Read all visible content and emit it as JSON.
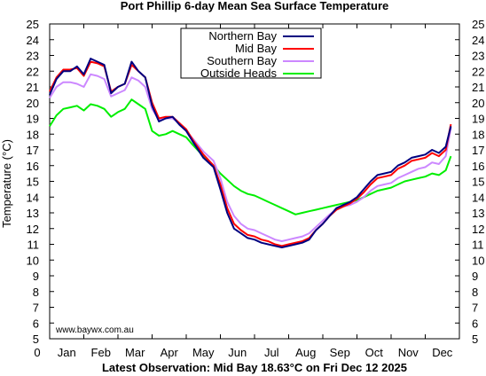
{
  "chart_data": {
    "type": "line",
    "title": "Port Phillip 6-day Mean Sea Surface Temperature",
    "ylabel": "Temperature (°C)",
    "xlabel": "",
    "footer": "Latest Observation: Mid Bay 18.63°C on Fri Dec 12 2025",
    "watermark": "www.baywx.com.au",
    "x_axis_zero_label": "0",
    "xlim": [
      0,
      12
    ],
    "ylim": [
      5,
      25
    ],
    "y_ticks": [
      "5",
      "6",
      "7",
      "8",
      "9",
      "10",
      "11",
      "12",
      "13",
      "14",
      "15",
      "16",
      "17",
      "18",
      "19",
      "20",
      "21",
      "22",
      "23",
      "24",
      "25"
    ],
    "x_ticks": [
      {
        "x": 0.5,
        "label": "Jan"
      },
      {
        "x": 1.5,
        "label": "Feb"
      },
      {
        "x": 2.5,
        "label": "Mar"
      },
      {
        "x": 3.5,
        "label": "Apr"
      },
      {
        "x": 4.5,
        "label": "May"
      },
      {
        "x": 5.5,
        "label": "Jun"
      },
      {
        "x": 6.5,
        "label": "Jul"
      },
      {
        "x": 7.5,
        "label": "Aug"
      },
      {
        "x": 8.5,
        "label": "Sep"
      },
      {
        "x": 9.5,
        "label": "Oct"
      },
      {
        "x": 10.5,
        "label": "Nov"
      },
      {
        "x": 11.5,
        "label": "Dec"
      }
    ],
    "grid": false,
    "legend_position": "top-center",
    "series": [
      {
        "name": "Northern Bay",
        "color": "#000080",
        "x": [
          0.0,
          0.2,
          0.4,
          0.6,
          0.8,
          1.0,
          1.2,
          1.4,
          1.6,
          1.8,
          2.0,
          2.2,
          2.4,
          2.6,
          2.8,
          3.0,
          3.2,
          3.4,
          3.6,
          3.8,
          4.0,
          4.2,
          4.5,
          4.8,
          5.0,
          5.2,
          5.4,
          5.6,
          5.8,
          6.0,
          6.2,
          6.4,
          6.6,
          6.8,
          7.0,
          7.2,
          7.4,
          7.6,
          7.8,
          8.0,
          8.2,
          8.4,
          8.6,
          8.8,
          9.0,
          9.2,
          9.4,
          9.6,
          9.8,
          10.0,
          10.2,
          10.4,
          10.6,
          10.8,
          11.0,
          11.2,
          11.4,
          11.6,
          11.75
        ],
        "y": [
          20.5,
          21.5,
          22.0,
          22.0,
          22.3,
          21.8,
          22.8,
          22.6,
          22.4,
          20.6,
          21.0,
          21.2,
          22.6,
          22.0,
          21.6,
          19.8,
          18.8,
          19.0,
          19.1,
          18.6,
          18.2,
          17.5,
          16.5,
          15.9,
          14.5,
          13.0,
          12.0,
          11.7,
          11.4,
          11.3,
          11.1,
          11.0,
          10.9,
          10.8,
          10.9,
          11.0,
          11.1,
          11.3,
          11.9,
          12.3,
          12.8,
          13.3,
          13.5,
          13.7,
          14.0,
          14.5,
          15.0,
          15.4,
          15.5,
          15.6,
          16.0,
          16.2,
          16.5,
          16.6,
          16.7,
          17.0,
          16.8,
          17.2,
          18.5
        ]
      },
      {
        "name": "Mid Bay",
        "color": "#ff0000",
        "x": [
          0.0,
          0.2,
          0.4,
          0.6,
          0.8,
          1.0,
          1.2,
          1.4,
          1.6,
          1.8,
          2.0,
          2.2,
          2.4,
          2.6,
          2.8,
          3.0,
          3.2,
          3.4,
          3.6,
          3.8,
          4.0,
          4.2,
          4.5,
          4.8,
          5.0,
          5.2,
          5.4,
          5.6,
          5.8,
          6.0,
          6.2,
          6.4,
          6.6,
          6.8,
          7.0,
          7.2,
          7.4,
          7.6,
          7.8,
          8.0,
          8.2,
          8.4,
          8.6,
          8.8,
          9.0,
          9.2,
          9.4,
          9.6,
          9.8,
          10.0,
          10.2,
          10.4,
          10.6,
          10.8,
          11.0,
          11.2,
          11.4,
          11.6,
          11.75
        ],
        "y": [
          20.7,
          21.6,
          22.1,
          22.1,
          22.2,
          21.7,
          22.6,
          22.5,
          22.3,
          20.7,
          21.0,
          21.2,
          22.4,
          22.0,
          21.6,
          20.0,
          19.0,
          19.1,
          19.1,
          18.7,
          18.3,
          17.6,
          16.7,
          16.0,
          14.8,
          13.3,
          12.3,
          11.9,
          11.6,
          11.5,
          11.3,
          11.2,
          11.0,
          10.9,
          11.0,
          11.1,
          11.2,
          11.4,
          11.9,
          12.3,
          12.8,
          13.2,
          13.4,
          13.6,
          13.9,
          14.3,
          14.8,
          15.2,
          15.3,
          15.4,
          15.8,
          16.0,
          16.3,
          16.4,
          16.5,
          16.8,
          16.6,
          17.0,
          18.63
        ]
      },
      {
        "name": "Southern Bay",
        "color": "#cc88ff",
        "x": [
          0.0,
          0.2,
          0.4,
          0.6,
          0.8,
          1.0,
          1.2,
          1.4,
          1.6,
          1.8,
          2.0,
          2.2,
          2.4,
          2.6,
          2.8,
          3.0,
          3.2,
          3.4,
          3.6,
          3.8,
          4.0,
          4.2,
          4.5,
          4.8,
          5.0,
          5.2,
          5.4,
          5.6,
          5.8,
          6.0,
          6.2,
          6.4,
          6.6,
          6.8,
          7.0,
          7.2,
          7.4,
          7.6,
          7.8,
          8.0,
          8.2,
          8.4,
          8.6,
          8.8,
          9.0,
          9.2,
          9.4,
          9.6,
          9.8,
          10.0,
          10.2,
          10.4,
          10.6,
          10.8,
          11.0,
          11.2,
          11.4,
          11.6,
          11.75
        ],
        "y": [
          20.3,
          21.0,
          21.3,
          21.3,
          21.2,
          21.0,
          21.8,
          21.7,
          21.5,
          20.4,
          20.6,
          20.8,
          21.6,
          21.4,
          21.0,
          19.6,
          18.9,
          19.0,
          19.0,
          18.7,
          18.2,
          17.7,
          16.9,
          16.3,
          15.2,
          13.7,
          12.8,
          12.3,
          12.0,
          11.9,
          11.7,
          11.5,
          11.3,
          11.2,
          11.3,
          11.4,
          11.5,
          11.7,
          12.1,
          12.5,
          12.9,
          13.2,
          13.4,
          13.5,
          13.7,
          14.0,
          14.4,
          14.7,
          14.8,
          14.9,
          15.2,
          15.4,
          15.6,
          15.8,
          15.9,
          16.2,
          16.1,
          16.6,
          18.4
        ]
      },
      {
        "name": "Outside Heads",
        "color": "#00ee00",
        "x": [
          0.0,
          0.2,
          0.4,
          0.6,
          0.8,
          1.0,
          1.2,
          1.4,
          1.6,
          1.8,
          2.0,
          2.2,
          2.4,
          2.6,
          2.8,
          3.0,
          3.2,
          3.4,
          3.6,
          3.8,
          4.0,
          4.2,
          4.5,
          4.8,
          5.0,
          5.2,
          5.4,
          5.6,
          5.8,
          6.0,
          6.2,
          6.4,
          6.6,
          6.8,
          7.0,
          7.2,
          7.4,
          7.6,
          7.8,
          8.0,
          8.2,
          8.4,
          8.6,
          8.8,
          9.0,
          9.2,
          9.4,
          9.6,
          9.8,
          10.0,
          10.2,
          10.4,
          10.6,
          10.8,
          11.0,
          11.2,
          11.4,
          11.6,
          11.75
        ],
        "y": [
          18.5,
          19.2,
          19.6,
          19.7,
          19.8,
          19.5,
          19.9,
          19.8,
          19.6,
          19.1,
          19.4,
          19.6,
          20.2,
          19.9,
          19.6,
          18.2,
          17.9,
          18.0,
          18.2,
          18.0,
          17.8,
          17.3,
          16.6,
          16.0,
          15.5,
          15.1,
          14.7,
          14.4,
          14.2,
          14.1,
          13.9,
          13.7,
          13.5,
          13.3,
          13.1,
          12.9,
          13.0,
          13.1,
          13.2,
          13.3,
          13.4,
          13.5,
          13.6,
          13.7,
          13.8,
          14.0,
          14.2,
          14.4,
          14.5,
          14.6,
          14.8,
          15.0,
          15.1,
          15.2,
          15.3,
          15.5,
          15.4,
          15.7,
          16.6
        ]
      }
    ]
  }
}
